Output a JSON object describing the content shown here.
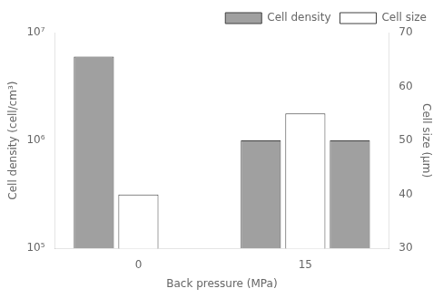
{
  "chart_data": {
    "type": "bar",
    "categories": [
      "0",
      "15"
    ],
    "series": [
      {
        "name": "Cell density",
        "color": "#a0a0a0",
        "values": [
          6000000,
          1000000
        ]
      },
      {
        "name": "Cell size",
        "color": "#ffffff",
        "values": [
          40,
          55
        ],
        "axis": "y2"
      },
      {
        "name": "Cell density",
        "color": "#a0a0a0",
        "values": [
          null,
          1000000
        ]
      }
    ],
    "xlabel": "Back pressure (MPa)",
    "ylabel": "Cell density (cell/cm³)",
    "y2label": "Cell size (μm)",
    "log": "y",
    "ylim": [
      100000,
      10000000
    ],
    "yticks": [
      {
        "value": 100000,
        "label": "10⁵"
      },
      {
        "value": 1000000,
        "label": "10⁶"
      },
      {
        "value": 10000000,
        "label": "10⁷"
      }
    ],
    "y2lim": [
      30,
      70
    ],
    "y2ticks": [
      30,
      40,
      50,
      60,
      70
    ],
    "grid": false,
    "legend": "upper right"
  }
}
